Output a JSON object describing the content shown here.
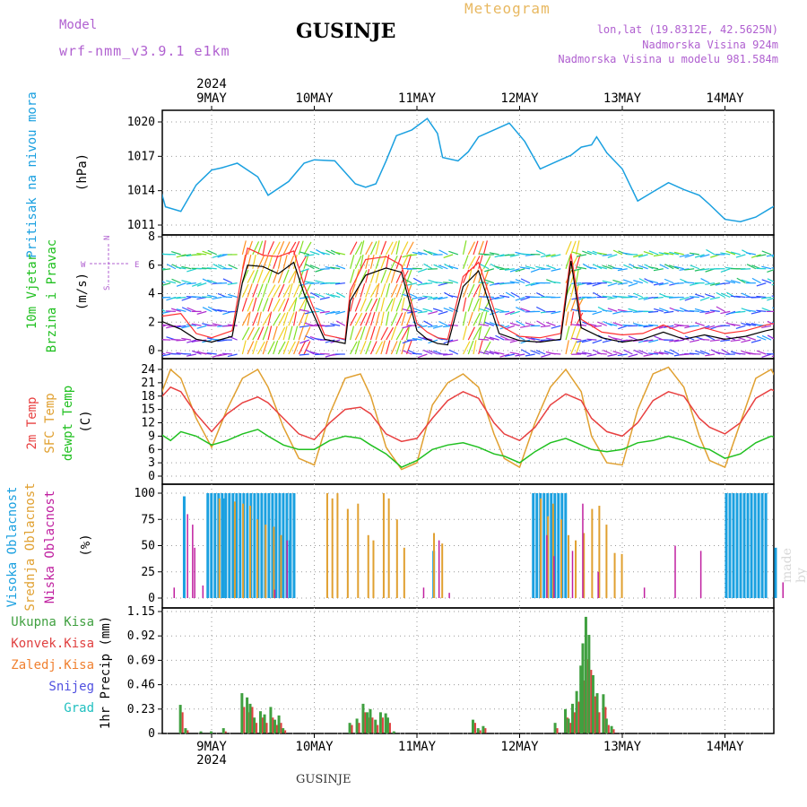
{
  "header": {
    "model_label": "Model",
    "model_name": "wrf-nmm_v3.9.1 e1km",
    "title": "GUSINJE",
    "meteogram_label": "Meteogram",
    "coords": "lon,lat (19.8312E, 42.5625N)",
    "elevation": "Nadmorska Visina 924m",
    "model_elevation": "Nadmorska Visina u modelu 981.584m"
  },
  "footer": {
    "location": "GUSINJE",
    "made_by": "made by Angel"
  },
  "time_axis": {
    "year": "2024",
    "days": [
      "9MAY",
      "10MAY",
      "11MAY",
      "12MAY",
      "13MAY",
      "14MAY"
    ]
  },
  "colors": {
    "pressure": "#1aa0e0",
    "t2m": "#e84040",
    "tsfc": "#e0a030",
    "dewpt": "#20c020",
    "wind_gust": "#ff3030",
    "wind_speed": "#000000",
    "cloud_high": "#1aa0e0",
    "cloud_mid": "#e0a030",
    "cloud_low": "#c020a0",
    "precip_total": "#40a040",
    "precip_conv": "#e04040"
  },
  "chart_data": [
    {
      "type": "line",
      "panel": "pressure",
      "ylabel": [
        "Pritisak na nivou mora",
        "(hPa)"
      ],
      "yticks": [
        1011,
        1014,
        1017,
        1020
      ],
      "ylim": [
        1010.4,
        1021.4
      ],
      "x": [
        -0.5,
        -0.45,
        -0.3,
        -0.15,
        0,
        0.1,
        0.25,
        0.45,
        0.55,
        0.75,
        0.9,
        1.0,
        1.2,
        1.4,
        1.5,
        1.6,
        1.7,
        1.8,
        1.95,
        2.1,
        2.2,
        2.25,
        2.4,
        2.5,
        2.6,
        2.75,
        2.9,
        3.05,
        3.2,
        3.35,
        3.5,
        3.6,
        3.7,
        3.75,
        3.85,
        4.0,
        4.15,
        4.3,
        4.45,
        4.6,
        4.75,
        4.85,
        5.0,
        5.15,
        5.3,
        5.45,
        5.6,
        5.8,
        5.95,
        6.05
      ],
      "series": [
        {
          "values": [
            1014.2,
            1012.6,
            1012.2,
            1014.5,
            1015.8,
            1016.0,
            1016.4,
            1015.2,
            1013.6,
            1014.8,
            1016.4,
            1016.7,
            1016.6,
            1014.6,
            1014.3,
            1014.6,
            1016.6,
            1018.8,
            1019.3,
            1020.3,
            1019.0,
            1016.9,
            1016.6,
            1017.4,
            1018.7,
            1019.3,
            1019.9,
            1018.3,
            1015.9,
            1016.5,
            1017.1,
            1017.8,
            1018.0,
            1018.7,
            1017.3,
            1015.9,
            1013.1,
            1013.9,
            1014.7,
            1014.1,
            1013.6,
            1012.8,
            1011.5,
            1011.3,
            1011.7,
            1012.5,
            1013.2,
            1012.0,
            1011.2,
            1011.8
          ]
        }
      ]
    },
    {
      "type": "line",
      "panel": "wind",
      "ylabel": [
        "10m Vjetar",
        "Brzina i Pravac",
        "(m/s)"
      ],
      "compass": {
        "n": "N",
        "s": "S",
        "w": "W",
        "e": "E"
      },
      "yticks": [
        0,
        2,
        4,
        6,
        8
      ],
      "ylim": [
        -0.6,
        8
      ],
      "x": [
        -0.5,
        -0.3,
        -0.15,
        0,
        0.2,
        0.3,
        0.35,
        0.5,
        0.65,
        0.8,
        0.9,
        1.1,
        1.3,
        1.35,
        1.5,
        1.7,
        1.85,
        2.0,
        2.1,
        2.2,
        2.3,
        2.45,
        2.6,
        2.8,
        3.0,
        3.2,
        3.4,
        3.5,
        3.6,
        3.8,
        4.0,
        4.2,
        4.4,
        4.6,
        4.8,
        5.0,
        5.2,
        5.4,
        5.6,
        5.8,
        5.9,
        6.05
      ],
      "series": [
        {
          "name": "speed",
          "values": [
            2.1,
            1.5,
            0.8,
            0.6,
            1.0,
            4.8,
            6.0,
            5.9,
            5.4,
            6.2,
            4.0,
            0.8,
            0.5,
            3.5,
            5.3,
            5.8,
            5.5,
            1.4,
            0.8,
            0.5,
            0.4,
            4.5,
            5.6,
            1.2,
            0.7,
            0.6,
            0.8,
            6.3,
            1.6,
            0.9,
            0.6,
            0.8,
            1.3,
            0.8,
            1.1,
            0.8,
            1.0,
            1.4,
            1.7,
            0.6,
            4.3,
            3.6
          ]
        },
        {
          "name": "gust",
          "values": [
            2.4,
            2.6,
            1.2,
            0.9,
            1.4,
            5.6,
            7.2,
            6.7,
            6.6,
            7.0,
            4.6,
            1.1,
            0.8,
            4.2,
            6.4,
            6.6,
            6.0,
            1.9,
            1.3,
            0.9,
            0.8,
            5.2,
            6.2,
            1.8,
            1.0,
            0.9,
            1.2,
            6.8,
            2.2,
            1.3,
            1.1,
            1.2,
            1.8,
            1.2,
            1.6,
            1.2,
            1.4,
            1.8,
            2.1,
            1.0,
            4.8,
            4.0
          ]
        }
      ]
    },
    {
      "type": "line",
      "panel": "temperature",
      "ylabel": [
        "2m Temp",
        "SFC Temp",
        "dewpt Temp",
        "(C)"
      ],
      "yticks": [
        0,
        3,
        6,
        9,
        12,
        15,
        18,
        21,
        24
      ],
      "ylim": [
        -1,
        25.2
      ],
      "x": [
        -0.5,
        -0.4,
        -0.3,
        -0.15,
        0.0,
        0.15,
        0.3,
        0.45,
        0.55,
        0.7,
        0.85,
        1.0,
        1.15,
        1.3,
        1.45,
        1.55,
        1.7,
        1.85,
        2.0,
        2.15,
        2.3,
        2.45,
        2.6,
        2.75,
        2.85,
        3.0,
        3.15,
        3.3,
        3.45,
        3.6,
        3.7,
        3.85,
        4.0,
        4.15,
        4.3,
        4.45,
        4.6,
        4.75,
        4.85,
        5.0,
        5.15,
        5.3,
        5.45,
        5.6,
        5.75,
        5.85,
        6.0,
        6.05
      ],
      "series": [
        {
          "name": "2m",
          "values": [
            17.5,
            20.0,
            19.0,
            14.0,
            10.0,
            14.0,
            16.5,
            17.8,
            16.5,
            13.0,
            9.5,
            8.2,
            12.0,
            15.0,
            15.5,
            14.0,
            9.5,
            7.8,
            8.5,
            13.0,
            17.0,
            19.0,
            17.5,
            12.0,
            9.5,
            8.0,
            11.0,
            16.0,
            18.5,
            17.0,
            13.0,
            10.0,
            9.0,
            12.0,
            17.0,
            19.0,
            18.0,
            13.0,
            11.0,
            9.5,
            12.0,
            17.5,
            19.5,
            18.0,
            12.0,
            10.5,
            17.0,
            18.5
          ]
        },
        {
          "name": "sfc",
          "values": [
            18.0,
            24.0,
            22.0,
            13.0,
            6.5,
            15.0,
            22.0,
            24.0,
            20.0,
            11.0,
            4.0,
            2.5,
            14.0,
            22.0,
            23.0,
            18.0,
            6.5,
            1.5,
            3.0,
            16.0,
            21.0,
            23.0,
            20.0,
            9.5,
            4.0,
            2.0,
            12.0,
            20.0,
            24.0,
            19.0,
            9.0,
            3.0,
            2.5,
            15.0,
            23.0,
            24.5,
            20.0,
            9.0,
            3.5,
            2.0,
            12.0,
            22.0,
            24.0,
            18.0,
            7.0,
            4.0,
            20.0,
            15.0
          ]
        },
        {
          "name": "dewpt",
          "values": [
            9.5,
            8.0,
            10.0,
            9.0,
            7.0,
            8.0,
            9.5,
            10.5,
            9.0,
            7.0,
            6.0,
            6.0,
            8.0,
            9.0,
            8.5,
            7.0,
            5.0,
            2.0,
            3.5,
            6.0,
            7.0,
            7.5,
            6.5,
            5.0,
            4.5,
            3.0,
            5.5,
            7.5,
            8.5,
            7.0,
            6.0,
            5.5,
            6.0,
            7.5,
            8.0,
            9.0,
            8.0,
            6.5,
            6.0,
            4.0,
            5.0,
            7.5,
            9.0,
            8.0,
            6.5,
            6.0,
            8.5,
            7.0
          ]
        }
      ]
    },
    {
      "type": "bar",
      "panel": "clouds",
      "ylabel": [
        "Visoka Oblacnost",
        "Srednja Oblacnost",
        "Niska Oblacnost",
        "(%)"
      ],
      "yticks": [
        0,
        25,
        50,
        75,
        100
      ],
      "ylim": [
        0,
        100
      ],
      "high_blocks": [
        [
          -0.28,
          -0.26,
          97
        ],
        [
          -0.05,
          0.8,
          100
        ],
        [
          0.1,
          0.1,
          95
        ],
        [
          0.75,
          0.76,
          55
        ],
        [
          2.15,
          2.15,
          45
        ],
        [
          3.12,
          3.45,
          100
        ],
        [
          5.0,
          5.4,
          100
        ],
        [
          5.48,
          5.5,
          48
        ]
      ],
      "mid_bars": [
        [
          0.05,
          95
        ],
        [
          0.2,
          92
        ],
        [
          0.28,
          90
        ],
        [
          0.35,
          88
        ],
        [
          0.42,
          75
        ],
        [
          0.5,
          70
        ],
        [
          0.58,
          68
        ],
        [
          0.65,
          60
        ],
        [
          1.1,
          100
        ],
        [
          1.15,
          95
        ],
        [
          1.2,
          100
        ],
        [
          1.3,
          85
        ],
        [
          1.4,
          90
        ],
        [
          1.5,
          60
        ],
        [
          1.55,
          55
        ],
        [
          1.65,
          100
        ],
        [
          1.7,
          95
        ],
        [
          1.78,
          75
        ],
        [
          1.85,
          48
        ],
        [
          2.14,
          62
        ],
        [
          2.22,
          52
        ],
        [
          3.18,
          95
        ],
        [
          3.25,
          78
        ],
        [
          3.3,
          90
        ],
        [
          3.38,
          75
        ],
        [
          3.45,
          60
        ],
        [
          3.52,
          55
        ],
        [
          3.6,
          62
        ],
        [
          3.68,
          85
        ],
        [
          3.75,
          88
        ],
        [
          3.82,
          70
        ],
        [
          3.9,
          43
        ],
        [
          3.97,
          42
        ]
      ],
      "low_bars": [
        [
          -0.38,
          10
        ],
        [
          -0.25,
          80
        ],
        [
          -0.2,
          70
        ],
        [
          -0.18,
          48
        ],
        [
          -0.1,
          12
        ],
        [
          0.6,
          8
        ],
        [
          0.72,
          55
        ],
        [
          2.05,
          10
        ],
        [
          2.2,
          55
        ],
        [
          2.3,
          5
        ],
        [
          3.25,
          60
        ],
        [
          3.32,
          40
        ],
        [
          3.5,
          45
        ],
        [
          3.6,
          90
        ],
        [
          3.75,
          25
        ],
        [
          4.2,
          10
        ],
        [
          4.5,
          50
        ],
        [
          4.75,
          45
        ],
        [
          5.55,
          15
        ]
      ]
    },
    {
      "type": "bar",
      "panel": "precip",
      "ylabel": [
        "1hr Precip (mm)"
      ],
      "legend": [
        "Ukupna Kisa",
        "Konvek.Kisa",
        "Zaledj.Kisa",
        "Snijeg",
        "Grad"
      ],
      "yticks": [
        0,
        0.23,
        0.46,
        0.69,
        0.92,
        1.15
      ],
      "ylim": [
        0,
        1.15
      ],
      "bars": [
        [
          -0.3,
          0.27,
          0.2
        ],
        [
          -0.25,
          0.05,
          0.03
        ],
        [
          -0.1,
          0.02,
          0
        ],
        [
          0.0,
          0.02,
          0
        ],
        [
          0.12,
          0.05,
          0.02
        ],
        [
          0.3,
          0.38,
          0.25
        ],
        [
          0.35,
          0.34,
          0.2
        ],
        [
          0.38,
          0.28,
          0.25
        ],
        [
          0.42,
          0.15,
          0.1
        ],
        [
          0.48,
          0.21,
          0.15
        ],
        [
          0.52,
          0.18,
          0.1
        ],
        [
          0.58,
          0.25,
          0.15
        ],
        [
          0.62,
          0.13,
          0.08
        ],
        [
          0.66,
          0.17,
          0.1
        ],
        [
          0.7,
          0.05,
          0.03
        ],
        [
          1.35,
          0.1,
          0.08
        ],
        [
          1.42,
          0.14,
          0.1
        ],
        [
          1.48,
          0.28,
          0.2
        ],
        [
          1.52,
          0.2,
          0.15
        ],
        [
          1.55,
          0.23,
          0.15
        ],
        [
          1.6,
          0.13,
          0.08
        ],
        [
          1.65,
          0.2,
          0.15
        ],
        [
          1.7,
          0.19,
          0.12
        ],
        [
          1.72,
          0.15,
          0.1
        ],
        [
          1.78,
          0.02,
          0
        ],
        [
          2.55,
          0.13,
          0.1
        ],
        [
          2.6,
          0.05,
          0.03
        ],
        [
          2.65,
          0.07,
          0.05
        ],
        [
          3.35,
          0.1,
          0.05
        ],
        [
          3.45,
          0.23,
          0.15
        ],
        [
          3.48,
          0.14,
          0.1
        ],
        [
          3.52,
          0.28,
          0.2
        ],
        [
          3.56,
          0.4,
          0.3
        ],
        [
          3.6,
          0.64,
          0.4
        ],
        [
          3.62,
          0.85,
          0.5
        ],
        [
          3.65,
          1.1,
          0.7
        ],
        [
          3.68,
          0.93,
          0.6
        ],
        [
          3.72,
          0.55,
          0.35
        ],
        [
          3.76,
          0.38,
          0.2
        ],
        [
          3.82,
          0.37,
          0.25
        ],
        [
          3.85,
          0.14,
          0.08
        ],
        [
          3.9,
          0.07,
          0.04
        ],
        [
          6.05,
          0.25,
          0.25
        ]
      ]
    }
  ]
}
